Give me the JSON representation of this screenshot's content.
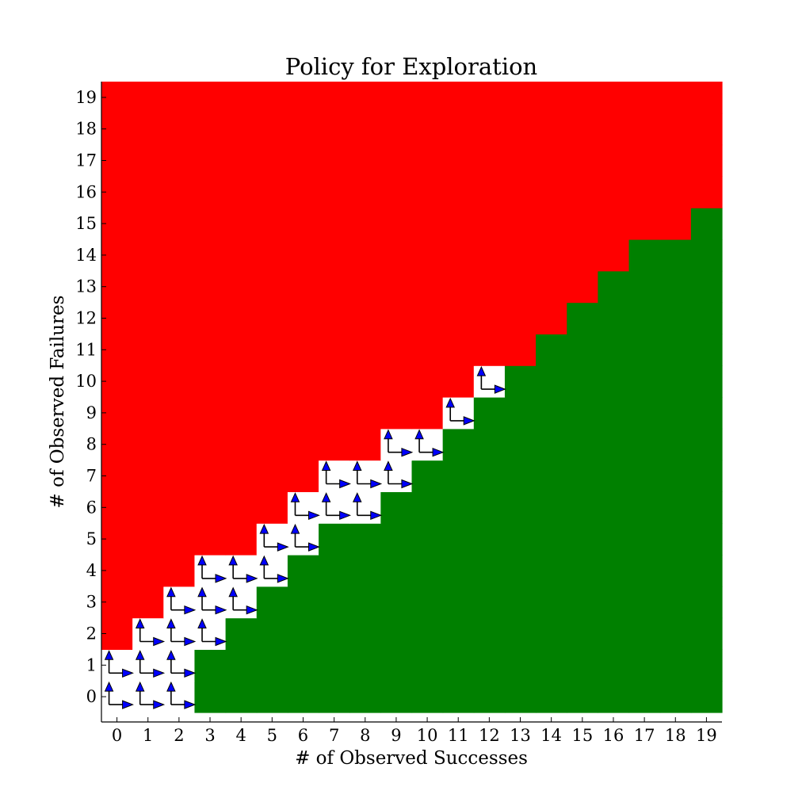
{
  "chart_data": {
    "type": "heatmap",
    "title": "Policy for Exploration",
    "xlabel": "# of Observed Successes",
    "ylabel": "# of Observed Failures",
    "x_ticks": [
      "0",
      "1",
      "2",
      "3",
      "4",
      "5",
      "6",
      "7",
      "8",
      "9",
      "10",
      "11",
      "12",
      "13",
      "14",
      "15",
      "16",
      "17",
      "18",
      "19"
    ],
    "y_ticks": [
      "0",
      "1",
      "2",
      "3",
      "4",
      "5",
      "6",
      "7",
      "8",
      "9",
      "10",
      "11",
      "12",
      "13",
      "14",
      "15",
      "16",
      "17",
      "18",
      "19"
    ],
    "xlim": [
      -0.5,
      19.5
    ],
    "ylim": [
      -0.5,
      19.5
    ],
    "grid": false,
    "legend": "none",
    "colors": {
      "stop_red": "#ff0000",
      "accept_green": "#008000",
      "explore_white": "#ffffff",
      "arrow_fill": "#0000ff"
    },
    "cell_categories": [
      "stop",
      "explore",
      "accept"
    ],
    "explore_ranges_by_failures": [
      {
        "failures": 0,
        "successes_from": 0,
        "successes_to": 2
      },
      {
        "failures": 1,
        "successes_from": 0,
        "successes_to": 2
      },
      {
        "failures": 2,
        "successes_from": 1,
        "successes_to": 3
      },
      {
        "failures": 3,
        "successes_from": 2,
        "successes_to": 4
      },
      {
        "failures": 4,
        "successes_from": 3,
        "successes_to": 5
      },
      {
        "failures": 5,
        "successes_from": 5,
        "successes_to": 6
      },
      {
        "failures": 6,
        "successes_from": 6,
        "successes_to": 8
      },
      {
        "failures": 7,
        "successes_from": 7,
        "successes_to": 9
      },
      {
        "failures": 8,
        "successes_from": 9,
        "successes_to": 10
      },
      {
        "failures": 9,
        "successes_from": 11,
        "successes_to": 11
      },
      {
        "failures": 10,
        "successes_from": 12,
        "successes_to": 12
      }
    ],
    "accept_boundary_by_failures": [
      {
        "failures": 0,
        "accept_from_successes": 3
      },
      {
        "failures": 1,
        "accept_from_successes": 3
      },
      {
        "failures": 2,
        "accept_from_successes": 4
      },
      {
        "failures": 3,
        "accept_from_successes": 5
      },
      {
        "failures": 4,
        "accept_from_successes": 6
      },
      {
        "failures": 5,
        "accept_from_successes": 7
      },
      {
        "failures": 6,
        "accept_from_successes": 9
      },
      {
        "failures": 7,
        "accept_from_successes": 10
      },
      {
        "failures": 8,
        "accept_from_successes": 11
      },
      {
        "failures": 9,
        "accept_from_successes": 12
      },
      {
        "failures": 10,
        "accept_from_successes": 13
      },
      {
        "failures": 11,
        "accept_from_successes": 14
      },
      {
        "failures": 12,
        "accept_from_successes": 15
      },
      {
        "failures": 13,
        "accept_from_successes": 16
      },
      {
        "failures": 14,
        "accept_from_successes": 17
      },
      {
        "failures": 15,
        "accept_from_successes": 19
      },
      {
        "failures": 16,
        "accept_from_successes": null
      },
      {
        "failures": 17,
        "accept_from_successes": null
      },
      {
        "failures": 18,
        "accept_from_successes": null
      },
      {
        "failures": 19,
        "accept_from_successes": null
      }
    ]
  }
}
